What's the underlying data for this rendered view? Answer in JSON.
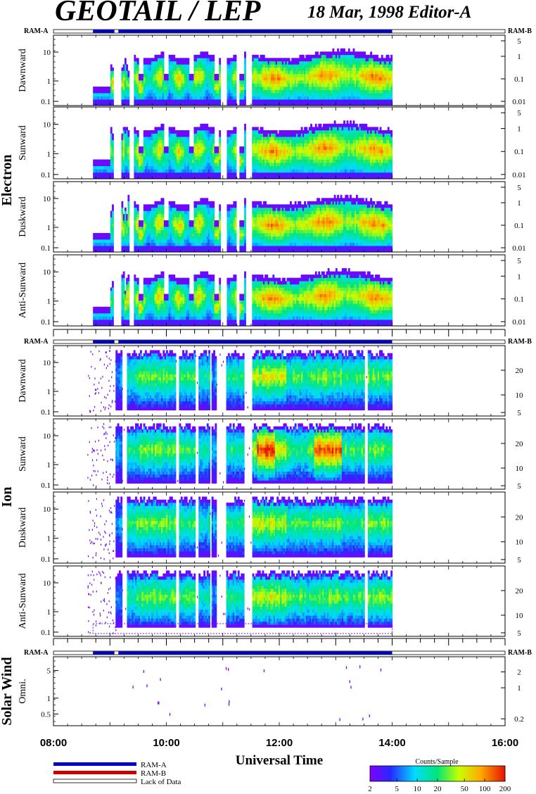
{
  "title": "GEOTAIL / LEP",
  "subtitle": "18 Mar, 1998   Editor-A",
  "xlabel": "Universal Time",
  "x_ticks": [
    "08:00",
    "10:00",
    "12:00",
    "14:00",
    "16:00"
  ],
  "ram_labels": {
    "a": "RAM-A",
    "b": "RAM-B"
  },
  "groups": [
    {
      "name": "Electron",
      "panels": [
        "Dawnward",
        "Sunward",
        "Duskward",
        "Anti-Sunward"
      ]
    },
    {
      "name": "Ion",
      "panels": [
        "Dawnward",
        "Sunward",
        "Duskward",
        "Anti-Sunward"
      ]
    },
    {
      "name": "Solar Wind",
      "panels": [
        "Omni."
      ]
    }
  ],
  "left_ticks": {
    "standard": [
      "10",
      "1",
      "0.1"
    ],
    "solar": [
      "5",
      "1",
      "0.5"
    ]
  },
  "right_ticks": {
    "electron": [
      "5",
      "1",
      "0.1",
      "0.01"
    ],
    "ion": [
      "20",
      "10",
      "5"
    ],
    "solar": [
      "2",
      "1",
      "0.2"
    ]
  },
  "legend": {
    "ram_a": "RAM-A",
    "ram_b": "RAM-B",
    "lack": "Lack of Data",
    "colorbar_title": "Counts/Sample",
    "colorbar_ticks": [
      "2",
      "5",
      "10",
      "20",
      "50",
      "100",
      "200"
    ]
  },
  "colors": {
    "ram_a": "#0000cc",
    "ram_b": "#cc0000"
  },
  "chart_data": {
    "type": "heatmap",
    "title": "GEOTAIL / LEP",
    "subtitle": "18 Mar, 1998   Editor-A",
    "xlabel": "Universal Time",
    "x_range_ut_hours": [
      8,
      16
    ],
    "data_coverage_ut_hours": [
      8.7,
      14.0
    ],
    "y_scale": "log",
    "colorbar": {
      "title": "Counts/Sample",
      "scale": "log",
      "range": [
        2,
        200
      ]
    },
    "ram_mode": "RAM-A"
  }
}
